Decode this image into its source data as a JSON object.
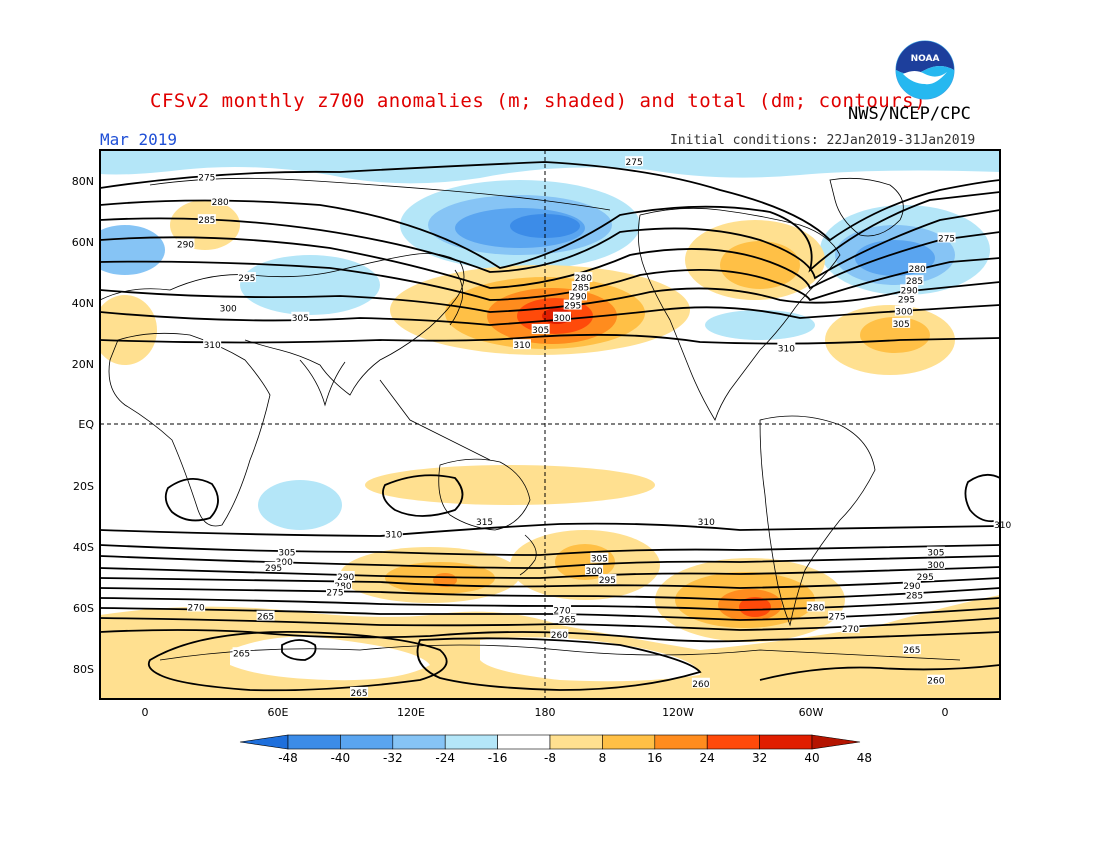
{
  "header": {
    "title": "CFSv2 monthly z700 anomalies (m; shaded) and total (dm; contours)",
    "agency": "NWS/NCEP/CPC",
    "period": "Mar 2019",
    "initial_conditions": "Initial conditions: 22Jan2019-31Jan2019",
    "logo_text": "NOAA"
  },
  "axes": {
    "lat_labels": [
      "80N",
      "60N",
      "40N",
      "20N",
      "EQ",
      "20S",
      "40S",
      "60S",
      "80S"
    ],
    "lon_labels": [
      "0",
      "60E",
      "120E",
      "180",
      "120W",
      "60W",
      "0"
    ]
  },
  "colorbar": {
    "ticks": [
      "-48",
      "-40",
      "-32",
      "-24",
      "-16",
      "-8",
      "8",
      "16",
      "24",
      "32",
      "40",
      "48"
    ],
    "colors": [
      "#1e6fdc",
      "#3c8ce8",
      "#5aa5f0",
      "#86c4f5",
      "#b4e6f8",
      "#ffffff",
      "#ffe090",
      "#ffc046",
      "#ff8c1e",
      "#ff4a0a",
      "#e01e00",
      "#b41400"
    ]
  },
  "contour_labels": [
    {
      "text": "275",
      "lon": 180,
      "lat": 86
    },
    {
      "text": "275",
      "lon": 20,
      "lat": 81
    },
    {
      "text": "280",
      "lon": 25,
      "lat": 73
    },
    {
      "text": "285",
      "lon": 20,
      "lat": 67
    },
    {
      "text": "290",
      "lon": 12,
      "lat": 59
    },
    {
      "text": "295",
      "lon": 35,
      "lat": 48
    },
    {
      "text": "300",
      "lon": 28,
      "lat": 38
    },
    {
      "text": "305",
      "lon": 55,
      "lat": 35
    },
    {
      "text": "310",
      "lon": 22,
      "lat": 26
    },
    {
      "text": "280",
      "lon": 161,
      "lat": 48
    },
    {
      "text": "285",
      "lon": 160,
      "lat": 45
    },
    {
      "text": "290",
      "lon": 159,
      "lat": 42
    },
    {
      "text": "295",
      "lon": 157,
      "lat": 39
    },
    {
      "text": "300",
      "lon": 153,
      "lat": 35
    },
    {
      "text": "305",
      "lon": 145,
      "lat": 31
    },
    {
      "text": "310",
      "lon": 138,
      "lat": 26
    },
    {
      "text": "310",
      "lon": -123,
      "lat": 25
    },
    {
      "text": "275",
      "lon": -63,
      "lat": 61
    },
    {
      "text": "280",
      "lon": -74,
      "lat": 51
    },
    {
      "text": "285",
      "lon": -75,
      "lat": 47
    },
    {
      "text": "290",
      "lon": -77,
      "lat": 44
    },
    {
      "text": "295",
      "lon": -78,
      "lat": 41
    },
    {
      "text": "300",
      "lon": -79,
      "lat": 37
    },
    {
      "text": "305",
      "lon": -80,
      "lat": 33
    },
    {
      "text": "315",
      "lon": 124,
      "lat": -32
    },
    {
      "text": "310",
      "lon": 90,
      "lat": -36
    },
    {
      "text": "310",
      "lon": -153,
      "lat": -32
    },
    {
      "text": "310",
      "lon": -42,
      "lat": -33
    },
    {
      "text": "305",
      "lon": 50,
      "lat": -42
    },
    {
      "text": "300",
      "lon": 49,
      "lat": -45
    },
    {
      "text": "295",
      "lon": 45,
      "lat": -47
    },
    {
      "text": "290",
      "lon": 72,
      "lat": -50
    },
    {
      "text": "280",
      "lon": 71,
      "lat": -53
    },
    {
      "text": "275",
      "lon": 68,
      "lat": -55
    },
    {
      "text": "305",
      "lon": 167,
      "lat": -44
    },
    {
      "text": "300",
      "lon": 165,
      "lat": -48
    },
    {
      "text": "295",
      "lon": 170,
      "lat": -51
    },
    {
      "text": "305",
      "lon": -67,
      "lat": -42
    },
    {
      "text": "300",
      "lon": -67,
      "lat": -46
    },
    {
      "text": "295",
      "lon": -71,
      "lat": -50
    },
    {
      "text": "290",
      "lon": -76,
      "lat": -53
    },
    {
      "text": "285",
      "lon": -75,
      "lat": -56
    },
    {
      "text": "270",
      "lon": 16,
      "lat": -60
    },
    {
      "text": "265",
      "lon": 42,
      "lat": -63
    },
    {
      "text": "270",
      "lon": 153,
      "lat": -61
    },
    {
      "text": "265",
      "lon": 155,
      "lat": -64
    },
    {
      "text": "280",
      "lon": -112,
      "lat": -60
    },
    {
      "text": "275",
      "lon": -104,
      "lat": -63
    },
    {
      "text": "270",
      "lon": -99,
      "lat": -67
    },
    {
      "text": "260",
      "lon": 152,
      "lat": -69
    },
    {
      "text": "265",
      "lon": 33,
      "lat": -75
    },
    {
      "text": "265",
      "lon": -76,
      "lat": -74
    },
    {
      "text": "260",
      "lon": -155,
      "lat": -85
    },
    {
      "text": "260",
      "lon": -67,
      "lat": -84
    },
    {
      "text": "265",
      "lon": 77,
      "lat": -88
    }
  ]
}
